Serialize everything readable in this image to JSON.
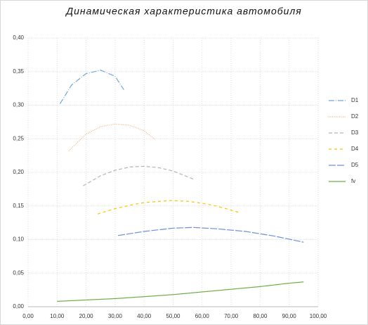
{
  "chart_data": {
    "type": "line",
    "title": "Динамическая характеристика  автомобиля",
    "xlim": [
      0,
      100
    ],
    "xticks": [
      {
        "value": 0,
        "label": "0,00"
      },
      {
        "value": 10,
        "label": "10,00"
      },
      {
        "value": 20,
        "label": "20,00"
      },
      {
        "value": 30,
        "label": "30,00"
      },
      {
        "value": 40,
        "label": "40,00"
      },
      {
        "value": 50,
        "label": "50,00"
      },
      {
        "value": 60,
        "label": "60,00"
      },
      {
        "value": 70,
        "label": "70,00"
      },
      {
        "value": 80,
        "label": "80,00"
      },
      {
        "value": 90,
        "label": "90,00"
      },
      {
        "value": 100,
        "label": "100,00"
      }
    ],
    "ylim": [
      0,
      0.4
    ],
    "yticks": [
      {
        "value": 0,
        "label": "0,00"
      },
      {
        "value": 0.05,
        "label": "0,05"
      },
      {
        "value": 0.1,
        "label": "0,10"
      },
      {
        "value": 0.15,
        "label": "0,15"
      },
      {
        "value": 0.2,
        "label": "0,20"
      },
      {
        "value": 0.25,
        "label": "0,25"
      },
      {
        "value": 0.3,
        "label": "0,30"
      },
      {
        "value": 0.35,
        "label": "0,35"
      },
      {
        "value": 0.4,
        "label": "0,40"
      }
    ],
    "grid": true,
    "legend": "right",
    "series": [
      {
        "name": "D1",
        "color": "#6fa8dc",
        "x": [
          11,
          15,
          20,
          25,
          30,
          33
        ],
        "values": [
          0.302,
          0.33,
          0.347,
          0.352,
          0.343,
          0.323
        ]
      },
      {
        "name": "D2",
        "color": "#f4b183",
        "x": [
          14,
          20,
          25,
          30,
          35,
          40,
          44
        ],
        "values": [
          0.232,
          0.257,
          0.268,
          0.272,
          0.27,
          0.262,
          0.248
        ]
      },
      {
        "name": "D3",
        "color": "#b4b4b4",
        "x": [
          19,
          25,
          30,
          35,
          40,
          45,
          50,
          57
        ],
        "values": [
          0.18,
          0.195,
          0.203,
          0.208,
          0.209,
          0.207,
          0.202,
          0.19
        ]
      },
      {
        "name": "D4",
        "color": "#ffc000",
        "x": [
          24,
          30,
          35,
          40,
          49,
          55,
          60,
          65,
          73
        ],
        "values": [
          0.138,
          0.146,
          0.151,
          0.155,
          0.158,
          0.157,
          0.154,
          0.15,
          0.14
        ]
      },
      {
        "name": "D5",
        "color": "#6d8fd8",
        "x": [
          31,
          40,
          50,
          57,
          65,
          75,
          85,
          95
        ],
        "values": [
          0.106,
          0.112,
          0.117,
          0.118,
          0.116,
          0.112,
          0.105,
          0.096
        ]
      },
      {
        "name": "fv",
        "color": "#70ad47",
        "x": [
          10,
          20,
          30,
          40,
          50,
          60,
          70,
          80,
          90,
          95
        ],
        "values": [
          0.008,
          0.01,
          0.012,
          0.015,
          0.018,
          0.022,
          0.026,
          0.03,
          0.035,
          0.037
        ]
      }
    ]
  }
}
